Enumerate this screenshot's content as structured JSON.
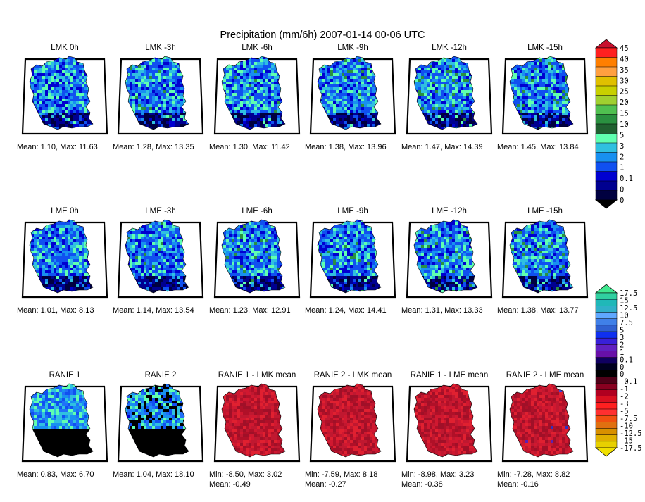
{
  "title": "Precipitation (mm/6h) 2007-01-14 00-06 UTC",
  "rows": [
    {
      "panels": [
        {
          "title": "LMK 0h",
          "stat1": "Mean: 1.10, Max: 11.63",
          "stat2": "",
          "scheme": "precip",
          "intensity": 0.45
        },
        {
          "title": "LMK -3h",
          "stat1": "Mean: 1.28, Max: 13.35",
          "stat2": "",
          "scheme": "precip",
          "intensity": 0.55
        },
        {
          "title": "LMK -6h",
          "stat1": "Mean: 1.30, Max: 11.42",
          "stat2": "",
          "scheme": "precip",
          "intensity": 0.55
        },
        {
          "title": "LMK -9h",
          "stat1": "Mean: 1.38, Max: 13.96",
          "stat2": "",
          "scheme": "precip",
          "intensity": 0.6
        },
        {
          "title": "LMK -12h",
          "stat1": "Mean: 1.47, Max: 14.39",
          "stat2": "",
          "scheme": "precip",
          "intensity": 0.65
        },
        {
          "title": "LMK -15h",
          "stat1": "Mean: 1.45, Max: 13.84",
          "stat2": "",
          "scheme": "precip",
          "intensity": 0.62
        }
      ]
    },
    {
      "panels": [
        {
          "title": "LME 0h",
          "stat1": "Mean: 1.01, Max: 8.13",
          "stat2": "",
          "scheme": "precip-light",
          "intensity": 0.5
        },
        {
          "title": "LME -3h",
          "stat1": "Mean: 1.14, Max: 13.54",
          "stat2": "",
          "scheme": "precip-light",
          "intensity": 0.55
        },
        {
          "title": "LME -6h",
          "stat1": "Mean: 1.23, Max: 12.91",
          "stat2": "",
          "scheme": "precip-light",
          "intensity": 0.58
        },
        {
          "title": "LME -9h",
          "stat1": "Mean: 1.24, Max: 14.41",
          "stat2": "",
          "scheme": "precip-light",
          "intensity": 0.6
        },
        {
          "title": "LME -12h",
          "stat1": "Mean: 1.31, Max: 13.33",
          "stat2": "",
          "scheme": "precip-light",
          "intensity": 0.62
        },
        {
          "title": "LME -15h",
          "stat1": "Mean: 1.38, Max: 13.77",
          "stat2": "",
          "scheme": "precip-light",
          "intensity": 0.65
        }
      ]
    },
    {
      "panels": [
        {
          "title": "RANIE 1",
          "stat1": "Mean: 0.83, Max: 6.70",
          "stat2": "",
          "scheme": "radar",
          "intensity": 0.4
        },
        {
          "title": "RANIE 2",
          "stat1": "Mean: 1.04, Max: 18.10",
          "stat2": "",
          "scheme": "radar2",
          "intensity": 0.5
        },
        {
          "title": "RANIE 1 - LMK mean",
          "stat1": "Min: -8.50, Max: 3.02",
          "stat2": "Mean: -0.49",
          "scheme": "diff",
          "intensity": 0.3
        },
        {
          "title": "RANIE 2 - LMK mean",
          "stat1": "Min: -7.59, Max: 8.18",
          "stat2": "Mean: -0.27",
          "scheme": "diff",
          "intensity": 0.45
        },
        {
          "title": "RANIE 1 - LME mean",
          "stat1": "Min: -8.98, Max: 3.23",
          "stat2": "Mean: -0.38",
          "scheme": "diff",
          "intensity": 0.35
        },
        {
          "title": "RANIE 2 - LME mean",
          "stat1": "Min: -7.28, Max: 8.82",
          "stat2": "Mean: -0.16",
          "scheme": "diff",
          "intensity": 0.45
        }
      ]
    }
  ],
  "colorbars": {
    "precip": {
      "labels": [
        "45",
        "40",
        "35",
        "30",
        "25",
        "20",
        "15",
        "10",
        "5",
        "3",
        "2",
        "1",
        "0.1",
        "0",
        "0"
      ],
      "colors": [
        "#c8102e",
        "#ff2020",
        "#ff7f00",
        "#ffa040",
        "#e0c000",
        "#c8d000",
        "#a0d030",
        "#50c050",
        "#2a9040",
        "#206030",
        "#60ffb0",
        "#30c0e0",
        "#1890f0",
        "#1050f0",
        "#0000d0",
        "#000090",
        "#000040",
        "#000000"
      ]
    },
    "diff": {
      "labels": [
        "17.5",
        "15",
        "12.5",
        "10",
        "7.5",
        "5",
        "3",
        "2",
        "1",
        "0.1",
        "0",
        "0",
        "-0.1",
        "-1",
        "-2",
        "-3",
        "-5",
        "-7.5",
        "-10",
        "-12.5",
        "-15",
        "-17.5"
      ],
      "colors": [
        "#40e890",
        "#30d0a0",
        "#20b8b8",
        "#30b0c8",
        "#60a8ff",
        "#4080e8",
        "#3060d0",
        "#1030f0",
        "#3820d8",
        "#6020c0",
        "#6810a8",
        "#100060",
        "#000020",
        "#000000",
        "#500018",
        "#880020",
        "#b00020",
        "#d81020",
        "#ff2020",
        "#ff3030",
        "#f05010",
        "#e07010",
        "#d89000",
        "#e0b000",
        "#e8d000",
        "#f0e000"
      ]
    }
  }
}
